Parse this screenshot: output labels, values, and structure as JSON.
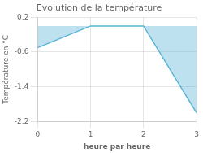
{
  "chart_data": {
    "type": "area",
    "title": "Evolution de la température",
    "xlabel": "heure par heure",
    "ylabel": "Température en °C",
    "x": [
      0,
      1,
      2,
      3
    ],
    "values": [
      -0.5,
      0.0,
      0.0,
      -2.0
    ],
    "color": "#5ab4d4",
    "xlim": [
      0,
      3
    ],
    "xticks": [
      0,
      1,
      2,
      3
    ],
    "ylim": [
      -2.2,
      0.2
    ],
    "yticks": [
      0.2,
      -0.6,
      -1.4,
      -2.2
    ],
    "grid": true
  }
}
